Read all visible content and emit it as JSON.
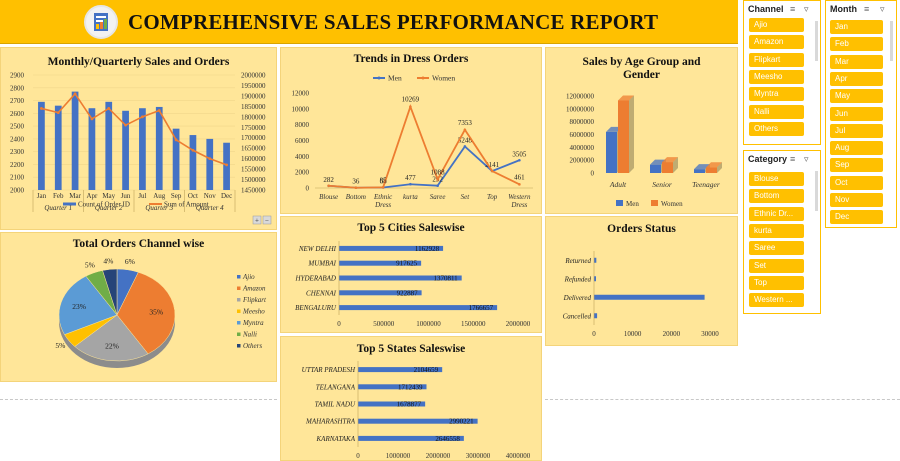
{
  "report_title": "COMPREHENSIVE SALES PERFORMANCE REPORT",
  "slicers": {
    "channel": {
      "label": "Channel",
      "items": [
        "Ajio",
        "Amazon",
        "Flipkart",
        "Meesho",
        "Myntra",
        "Nalli",
        "Others"
      ]
    },
    "month": {
      "label": "Month",
      "items": [
        "Jan",
        "Feb",
        "Mar",
        "Apr",
        "May",
        "Jun",
        "Jul",
        "Aug",
        "Sep",
        "Oct",
        "Nov",
        "Dec"
      ]
    },
    "category": {
      "label": "Category",
      "items": [
        "Blouse",
        "Bottom",
        "Ethnic Dr...",
        "kurta",
        "Saree",
        "Set",
        "Top",
        "Western ..."
      ]
    }
  },
  "chart_data": [
    {
      "id": "monthly",
      "type": "bar",
      "title": "Monthly/Quarterly Sales and Orders",
      "categories": [
        "Jan",
        "Feb",
        "Mar",
        "Apr",
        "May",
        "Jun",
        "Jul",
        "Aug",
        "Sep",
        "Oct",
        "Nov",
        "Dec"
      ],
      "groups": [
        "Quarter 1",
        "Quarter 2",
        "Quarter 3",
        "Quarter 4"
      ],
      "series": [
        {
          "name": "Count of Order ID",
          "type": "bar",
          "axis": "left",
          "color": "#4472c4",
          "values": [
            2690,
            2660,
            2770,
            2640,
            2690,
            2620,
            2640,
            2650,
            2480,
            2430,
            2400,
            2370
          ]
        },
        {
          "name": "Sum of Amount",
          "type": "line",
          "axis": "right",
          "color": "#ed7d31",
          "values": [
            1840000,
            1820000,
            1910000,
            1790000,
            1840000,
            1760000,
            1800000,
            1830000,
            1690000,
            1640000,
            1600000,
            1570000
          ]
        }
      ],
      "yticks_left": [
        "2900",
        "2800",
        "2700",
        "2600",
        "2500",
        "2400",
        "2300",
        "2200",
        "2100",
        "2000"
      ],
      "yticks_right": [
        "2000000",
        "1950000",
        "1900000",
        "1850000",
        "1800000",
        "1750000",
        "1700000",
        "1650000",
        "1600000",
        "1550000",
        "1500000",
        "1450000"
      ],
      "ylim_left": [
        2000,
        2900
      ],
      "ylim_right": [
        1450000,
        2000000
      ],
      "legend": "bottom",
      "pivot_buttons": [
        "+",
        "−"
      ]
    },
    {
      "id": "dress",
      "type": "line",
      "title": "Trends in Dress Orders",
      "categories": [
        "Blouse",
        "Bottom",
        "Ethnic Dress",
        "kurta",
        "Saree",
        "Set",
        "Top",
        "Western Dress"
      ],
      "series": [
        {
          "name": "Men",
          "color": "#4472c4",
          "values": [
            282,
            36,
            68,
            477,
            292,
            5248,
            2141,
            3505
          ],
          "labels": [
            "282",
            "36",
            "68",
            "477",
            "292",
            "5248",
            "2141",
            "3505"
          ]
        },
        {
          "name": "Women",
          "color": "#ed7d31",
          "values": [
            282,
            36,
            85,
            10269,
            1088,
            7353,
            2141,
            461
          ],
          "labels": [
            "",
            "",
            "85",
            "10269",
            "1088",
            "7353",
            "",
            "461"
          ]
        }
      ],
      "yticks": [
        "12000",
        "10000",
        "8000",
        "6000",
        "4000",
        "2000",
        "0"
      ],
      "ylim": [
        0,
        12000
      ],
      "legend": "top"
    },
    {
      "id": "age",
      "type": "bar",
      "title": "Sales by Age Group and Gender",
      "categories": [
        "Adult",
        "Senior",
        "Teenager"
      ],
      "series": [
        {
          "name": "Men",
          "color": "#4472c4",
          "values": [
            6400000,
            1300000,
            600000
          ]
        },
        {
          "name": "Women",
          "color": "#ed7d31",
          "values": [
            11300000,
            1700000,
            900000
          ]
        }
      ],
      "yticks": [
        "12000000",
        "10000000",
        "8000000",
        "6000000",
        "4000000",
        "2000000",
        "0"
      ],
      "ylim": [
        0,
        12000000
      ],
      "legend": "bottom"
    },
    {
      "id": "channel",
      "type": "pie",
      "title": "Total Orders Channel wise",
      "categories": [
        "Ajio",
        "Amazon",
        "Flipkart",
        "Meesho",
        "Myntra",
        "Nalli",
        "Others"
      ],
      "values": [
        6,
        35,
        22,
        5,
        23,
        5,
        4
      ],
      "labels": [
        "6%",
        "35%",
        "22%",
        "5%",
        "23%",
        "5%",
        "4%"
      ],
      "colors": [
        "#4472c4",
        "#ed7d31",
        "#a5a5a5",
        "#ffc000",
        "#5b9bd5",
        "#70ad47",
        "#264478"
      ],
      "legend": "right"
    },
    {
      "id": "cities",
      "type": "bar",
      "title": "Top 5 Cities Saleswise",
      "categories": [
        "NEW DELHI",
        "MUMBAI",
        "HYDERABAD",
        "CHENNAI",
        "BENGALURU"
      ],
      "values": [
        1162928,
        917625,
        1370811,
        922887,
        1766657
      ],
      "labels": [
        "1162928",
        "917625",
        "1370811",
        "922887",
        "1766657"
      ],
      "xticks": [
        "0",
        "500000",
        "1000000",
        "1500000",
        "2000000"
      ],
      "xlim": [
        0,
        2000000
      ]
    },
    {
      "id": "status",
      "type": "bar",
      "title": "Orders Status",
      "categories": [
        "Returned",
        "Refunded",
        "Delivered",
        "Cancelled"
      ],
      "values": [
        600,
        500,
        28600,
        800
      ],
      "xticks": [
        "0",
        "10000",
        "20000",
        "30000"
      ],
      "xlim": [
        0,
        30000
      ]
    },
    {
      "id": "states",
      "type": "bar",
      "title": "Top 5 States Saleswise",
      "categories": [
        "UTTAR PRADESH",
        "TELANGANA",
        "TAMIL NADU",
        "MAHARASHTRA",
        "KARNATAKA"
      ],
      "values": [
        2104659,
        1712439,
        1678877,
        2990221,
        2646558
      ],
      "labels": [
        "2104659",
        "1712439",
        "1678877",
        "2990221",
        "2646558"
      ],
      "xticks": [
        "0",
        "1000000",
        "2000000",
        "3000000",
        "4000000"
      ],
      "xlim": [
        0,
        4000000
      ]
    }
  ]
}
